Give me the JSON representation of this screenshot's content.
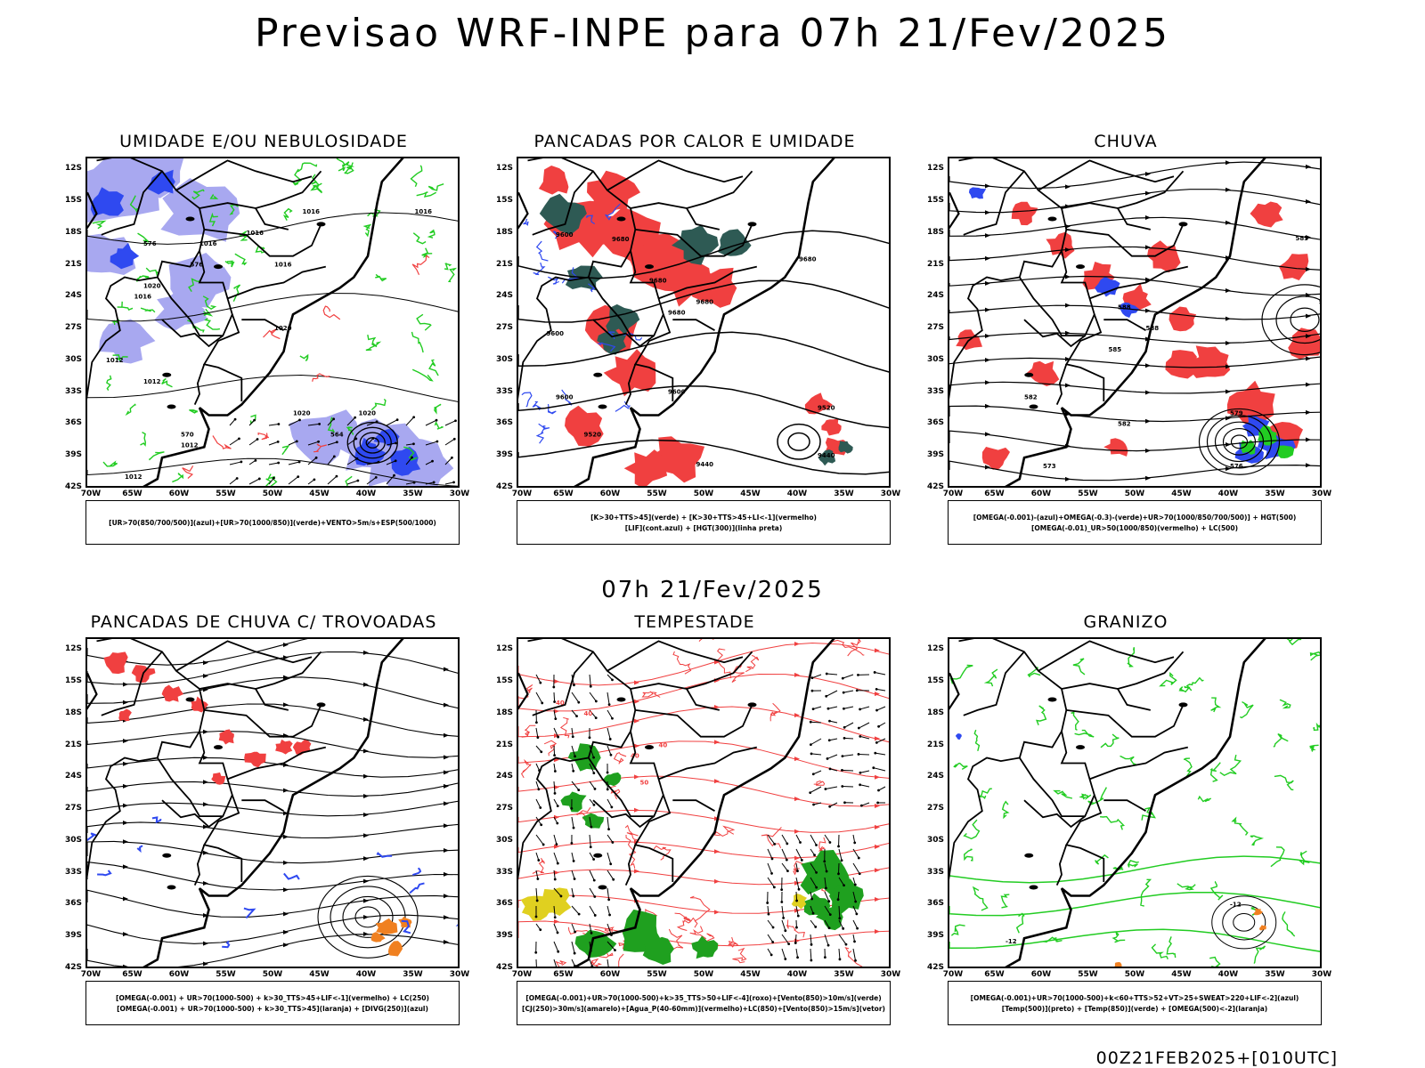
{
  "title": "Previsao WRF-INPE  para 07h 21/Fev/2025",
  "mid_time": "07h 21/Fev/2025",
  "footer": "00Z21FEB2025+[010UTC]",
  "lat_labels": [
    "12S",
    "15S",
    "18S",
    "21S",
    "24S",
    "27S",
    "30S",
    "33S",
    "36S",
    "39S",
    "42S"
  ],
  "lon_labels": [
    "70W",
    "65W",
    "60W",
    "55W",
    "50W",
    "45W",
    "40W",
    "35W",
    "30W"
  ],
  "colors": {
    "blue": "#2f49f0",
    "lavender": "#a8a8f0",
    "green": "#22cc22",
    "red": "#f04040",
    "dark_teal": "#2e5a54",
    "orange": "#f08020",
    "yellow": "#e0d020",
    "dark_green": "#1fa01f"
  },
  "panels": [
    {
      "title": "UMIDADE E/OU NEBULOSIDADE",
      "legend": [
        "[UR>70(850/700/500)](azul)+[UR>70(1000/850)](verde)+VENTO>5m/s+ESP(500/1000)"
      ],
      "contour_labels": [
        "1016",
        "1016",
        "1016",
        "1016",
        "1016",
        "1016",
        "1020",
        "1020",
        "1020",
        "1020",
        "1012",
        "1012",
        "1012",
        "1012",
        "576",
        "576",
        "570",
        "564"
      ]
    },
    {
      "title": "PANCADAS POR CALOR E UMIDADE",
      "legend": [
        "[K>30+TTS>45](verde) + [K>30+TTS>45+LI<-1](vermelho)",
        "[LIF](cont.azul) + [HGT(300)](linha preta)"
      ],
      "contour_labels": [
        "9680",
        "9680",
        "9680",
        "9680",
        "9680",
        "9600",
        "9600",
        "9600",
        "9600",
        "9520",
        "9520",
        "9440",
        "9440"
      ]
    },
    {
      "title": "CHUVA",
      "legend": [
        "[OMEGA(-0.001)-(azul)+OMEGA(-0.3)-(verde)+UR>70(1000/850/700/500)] + HGT(500)",
        "[OMEGA(-0.01)_UR>50(1000/850)(vermelho) + LC(500)"
      ],
      "contour_labels": [
        "585",
        "588",
        "588",
        "591",
        "585",
        "582",
        "579",
        "576",
        "573",
        "582"
      ]
    },
    {
      "title": "PANCADAS DE CHUVA C/ TROVOADAS",
      "legend": [
        "[OMEGA(-0.001) + UR>70(1000-500) + k>30_TTS>45+LIF<-1](vermelho) + LC(250)",
        "[OMEGA(-0.001) + UR>70(1000-500) + k>30_TTS>45](laranja) + [DIVG(250)](azul)"
      ],
      "contour_labels": []
    },
    {
      "title": "TEMPESTADE",
      "legend": [
        "[OMEGA(-0.001)+UR>70(1000-500)+k>35_TTS>50+LIF<-4](roxo)+[Vento(850)>10m/s](verde)",
        "[CJ(250)>30m/s](amarelo)+[Agua_P(40-60mm)](vermelho)+LC(850)+[Vento(850)>15m/s](vetor)"
      ],
      "contour_labels": [
        "40",
        "40",
        "40",
        "50",
        "40"
      ]
    },
    {
      "title": "GRANIZO",
      "legend": [
        "[OMEGA(-0.001)+UR>70(1000-500)+k<60+TTS>52+VT>25+SWEAT>220+LIF<-2](azul)",
        "[Temp(500)](preto) + [Temp(850)](verde) + [OMEGA(500)<-2](laranja)"
      ],
      "contour_labels": [
        "-12",
        "-12"
      ]
    }
  ]
}
